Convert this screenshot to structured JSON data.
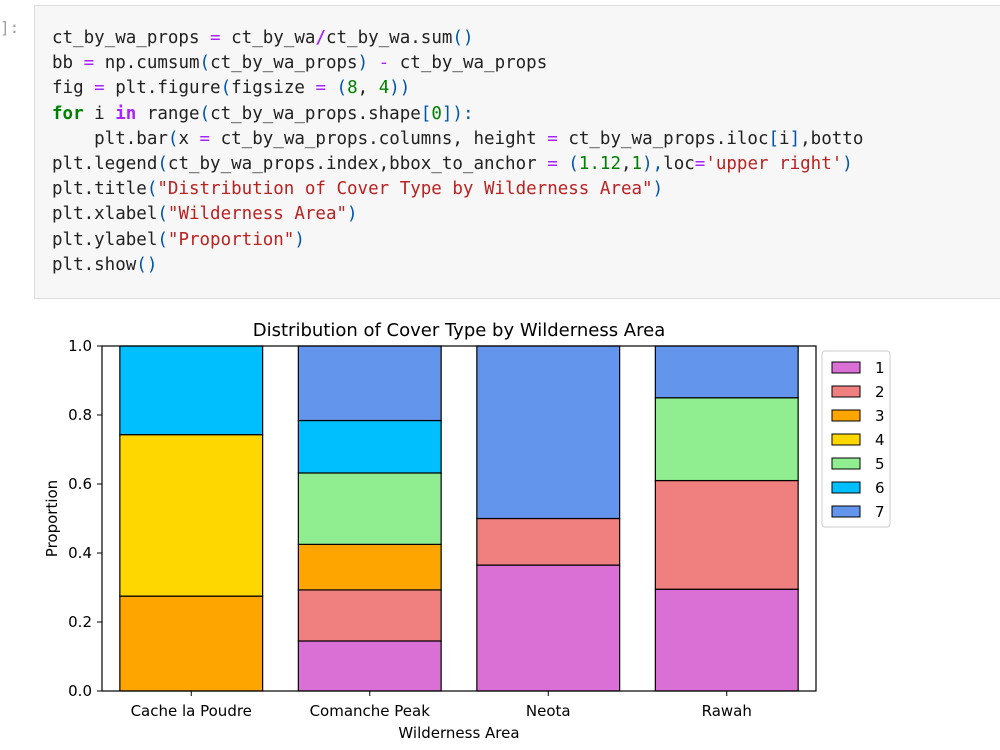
{
  "notebook": {
    "prompt": "]:",
    "code_lines": [
      [
        {
          "t": "ct_by_wa_props "
        },
        {
          "t": "=",
          "c": "tok-op"
        },
        {
          "t": " ct_by_wa"
        },
        {
          "t": "/",
          "c": "tok-opb"
        },
        {
          "t": "ct_by_wa.sum"
        },
        {
          "t": "()",
          "c": "tok-p"
        }
      ],
      [
        {
          "t": "bb "
        },
        {
          "t": "=",
          "c": "tok-op"
        },
        {
          "t": " np.cumsum"
        },
        {
          "t": "(",
          "c": "tok-p"
        },
        {
          "t": "ct_by_wa_props"
        },
        {
          "t": ")",
          "c": "tok-p"
        },
        {
          "t": " "
        },
        {
          "t": "-",
          "c": "tok-op"
        },
        {
          "t": " ct_by_wa_props"
        }
      ],
      [
        {
          "t": "fig "
        },
        {
          "t": "=",
          "c": "tok-op"
        },
        {
          "t": " plt.figure"
        },
        {
          "t": "(",
          "c": "tok-p"
        },
        {
          "t": "figsize "
        },
        {
          "t": "=",
          "c": "tok-op"
        },
        {
          "t": " "
        },
        {
          "t": "(",
          "c": "tok-p"
        },
        {
          "t": "8",
          "c": "tok-num"
        },
        {
          "t": ", "
        },
        {
          "t": "4",
          "c": "tok-num"
        },
        {
          "t": "))",
          "c": "tok-p"
        }
      ],
      [
        {
          "t": "for",
          "c": "tok-kw"
        },
        {
          "t": " i "
        },
        {
          "t": "in",
          "c": "tok-opb"
        },
        {
          "t": " range"
        },
        {
          "t": "(",
          "c": "tok-p"
        },
        {
          "t": "ct_by_wa_props.shape"
        },
        {
          "t": "[",
          "c": "tok-p"
        },
        {
          "t": "0",
          "c": "tok-num"
        },
        {
          "t": "]):",
          "c": "tok-p"
        }
      ],
      [
        {
          "t": "    plt.bar"
        },
        {
          "t": "(",
          "c": "tok-p"
        },
        {
          "t": "x "
        },
        {
          "t": "=",
          "c": "tok-op"
        },
        {
          "t": " ct_by_wa_props.columns, height "
        },
        {
          "t": "=",
          "c": "tok-op"
        },
        {
          "t": " ct_by_wa_props.iloc"
        },
        {
          "t": "[",
          "c": "tok-p"
        },
        {
          "t": "i"
        },
        {
          "t": "]",
          "c": "tok-p"
        },
        {
          "t": ",botto"
        }
      ],
      [
        {
          "t": "plt.legend"
        },
        {
          "t": "(",
          "c": "tok-p"
        },
        {
          "t": "ct_by_wa_props.index,bbox_to_anchor "
        },
        {
          "t": "=",
          "c": "tok-op"
        },
        {
          "t": " "
        },
        {
          "t": "(",
          "c": "tok-p"
        },
        {
          "t": "1.12",
          "c": "tok-num"
        },
        {
          "t": ","
        },
        {
          "t": "1",
          "c": "tok-num"
        },
        {
          "t": "),",
          "c": "tok-p"
        },
        {
          "t": "loc"
        },
        {
          "t": "=",
          "c": "tok-op"
        },
        {
          "t": "'upper right'",
          "c": "tok-str"
        },
        {
          "t": ")",
          "c": "tok-p"
        }
      ],
      [
        {
          "t": "plt.title"
        },
        {
          "t": "(",
          "c": "tok-p"
        },
        {
          "t": "\"Distribution of Cover Type by Wilderness Area\"",
          "c": "tok-str"
        },
        {
          "t": ")",
          "c": "tok-p"
        }
      ],
      [
        {
          "t": "plt.xlabel"
        },
        {
          "t": "(",
          "c": "tok-p"
        },
        {
          "t": "\"Wilderness Area\"",
          "c": "tok-str"
        },
        {
          "t": ")",
          "c": "tok-p"
        }
      ],
      [
        {
          "t": "plt.ylabel"
        },
        {
          "t": "(",
          "c": "tok-p"
        },
        {
          "t": "\"Proportion\"",
          "c": "tok-str"
        },
        {
          "t": ")",
          "c": "tok-p"
        }
      ],
      [
        {
          "t": "plt.show"
        },
        {
          "t": "()",
          "c": "tok-p"
        }
      ]
    ]
  },
  "chart_data": {
    "type": "bar",
    "stacked": true,
    "title": "Distribution of Cover Type by Wilderness Area",
    "xlabel": "Wilderness Area",
    "ylabel": "Proportion",
    "ylim": [
      0,
      1.0
    ],
    "yticks": [
      0.0,
      0.2,
      0.4,
      0.6,
      0.8,
      1.0
    ],
    "ytick_labels": [
      "0.0",
      "0.2",
      "0.4",
      "0.6",
      "0.8",
      "1.0"
    ],
    "categories": [
      "Cache la Poudre",
      "Comanche Peak",
      "Neota",
      "Rawah"
    ],
    "legend_position": "upper-right-outside",
    "series": [
      {
        "name": "1",
        "color": "#da70d6",
        "values": [
          0.0,
          0.145,
          0.365,
          0.295
        ]
      },
      {
        "name": "2",
        "color": "#f08080",
        "values": [
          0.0,
          0.148,
          0.135,
          0.315
        ]
      },
      {
        "name": "3",
        "color": "#ffa500",
        "values": [
          0.275,
          0.132,
          0.0,
          0.0
        ]
      },
      {
        "name": "4",
        "color": "#ffd700",
        "values": [
          0.468,
          0.0,
          0.0,
          0.0
        ]
      },
      {
        "name": "5",
        "color": "#90ee90",
        "values": [
          0.0,
          0.207,
          0.0,
          0.24
        ]
      },
      {
        "name": "6",
        "color": "#00bfff",
        "values": [
          0.257,
          0.152,
          0.0,
          0.0
        ]
      },
      {
        "name": "7",
        "color": "#6495ed",
        "values": [
          0.0,
          0.216,
          0.5,
          0.15
        ]
      }
    ]
  }
}
